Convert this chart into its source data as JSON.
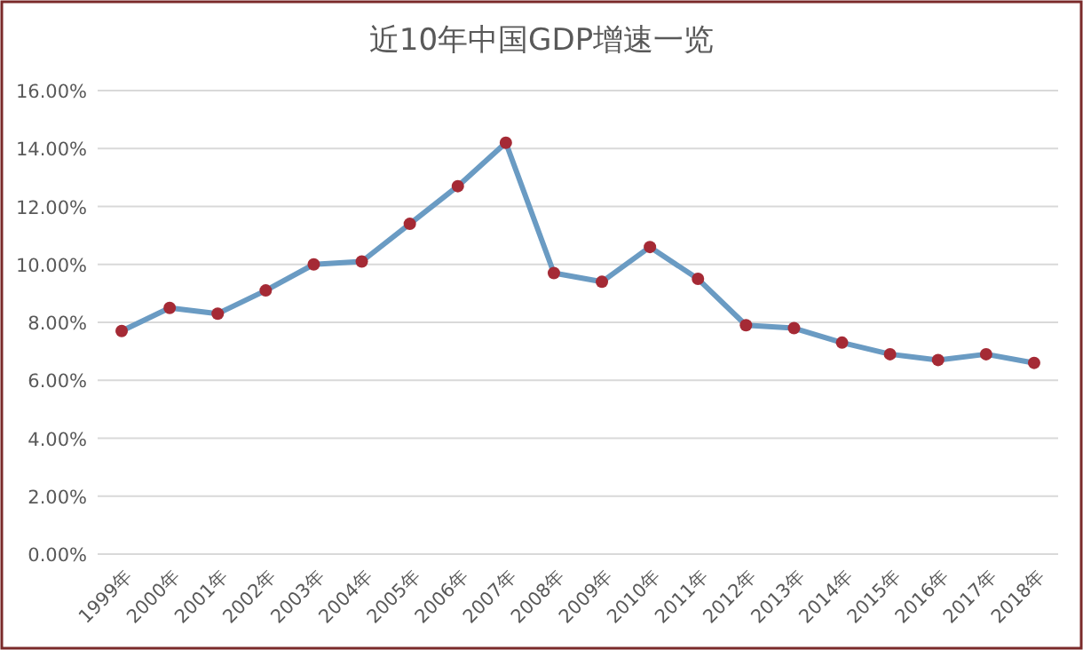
{
  "chart_data": {
    "type": "line",
    "title": "近10年中国GDP增速一览",
    "categories": [
      "1999年",
      "2000年",
      "2001年",
      "2002年",
      "2003年",
      "2004年",
      "2005年",
      "2006年",
      "2007年",
      "2008年",
      "2009年",
      "2010年",
      "2011年",
      "2012年",
      "2013年",
      "2014年",
      "2015年",
      "2016年",
      "2017年",
      "2018年"
    ],
    "series": [
      {
        "color": "#6a9bc3",
        "values": [
          7.7,
          8.5,
          8.3,
          9.1,
          10.0,
          10.1,
          11.4,
          12.7,
          14.2,
          9.7,
          9.4,
          10.6,
          9.5,
          7.9,
          7.8,
          7.3,
          6.9,
          6.7,
          6.9,
          6.6
        ]
      }
    ],
    "marker": "circle",
    "ylim": [
      0,
      16
    ],
    "yticks": [
      {
        "value": 0,
        "label": "0.00%"
      },
      {
        "value": 2,
        "label": "2.00%"
      },
      {
        "value": 4,
        "label": "4.00%"
      },
      {
        "value": 6,
        "label": "6.00%"
      },
      {
        "value": 8,
        "label": "8.00%"
      },
      {
        "value": 10,
        "label": "10.00%"
      },
      {
        "value": 12,
        "label": "12.00%"
      },
      {
        "value": 14,
        "label": "14.00%"
      },
      {
        "value": 16,
        "label": "16.00%"
      }
    ],
    "grid": "y"
  }
}
